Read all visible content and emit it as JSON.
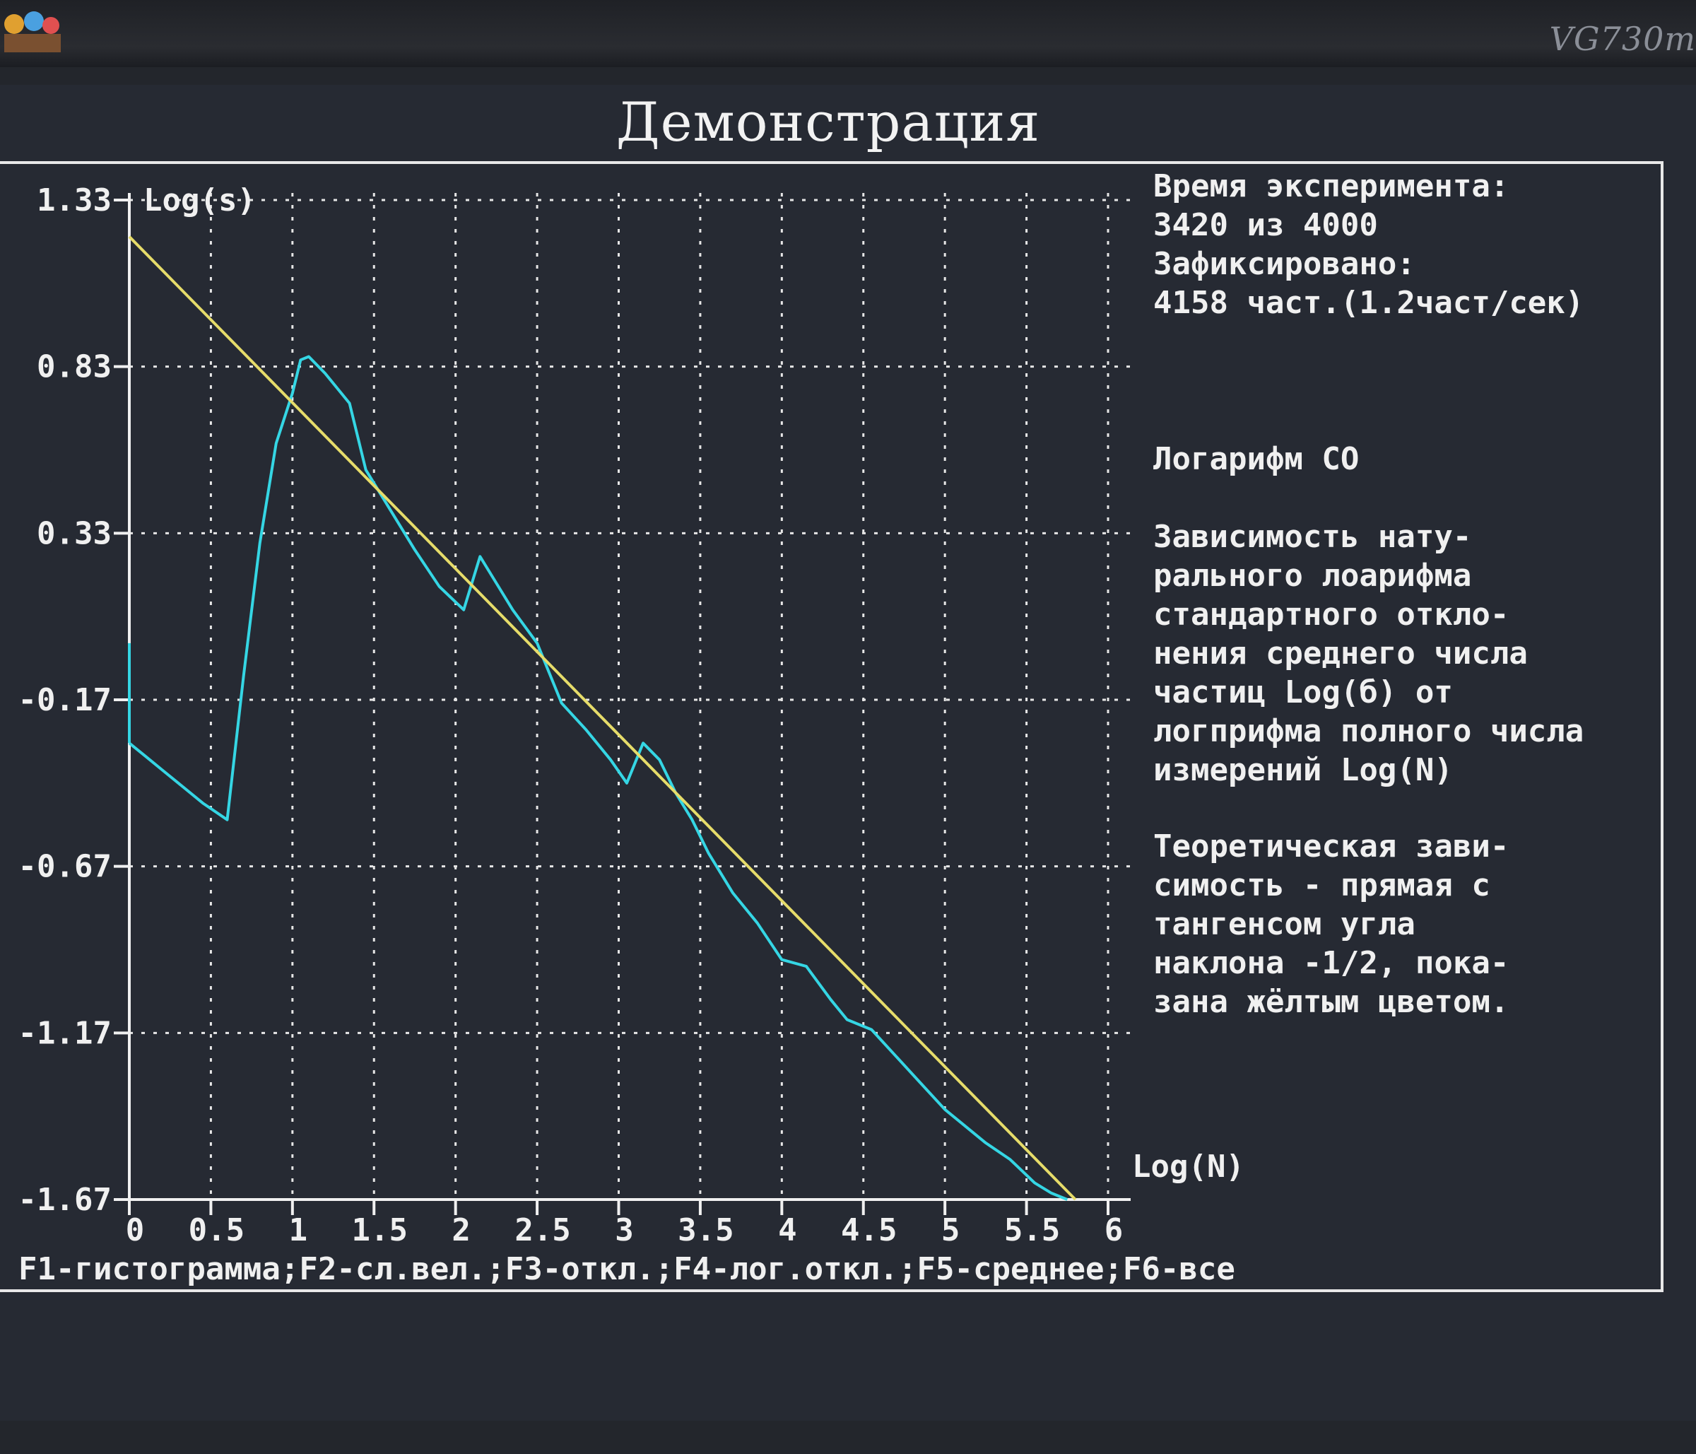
{
  "monitor": {
    "brand": "VG730m"
  },
  "window": {
    "title": "Демонстрация"
  },
  "info": {
    "time_label": "Время эксперимента:",
    "time_value": "3420 из 4000",
    "fixed_label": "Зафиксировано:",
    "fixed_value": "4158 част.(1.2част/сек)",
    "mode": "Логарифм СО",
    "description": "Зависимость нату-\nрального лоарифма\nстандартного откло-\nнения среднего числа\nчастиц Log(б) от\nлогприфма полного числа\nизмерений Log(N)",
    "theory": "Теоретическая зави-\nсимость - прямая с\nтангенсом угла\nнаклона -1/2, пока-\nзана жёлтым цветом."
  },
  "footer": {
    "fkeys": "F1-гистограмма;F2-сл.вел.;F3-откл.;F4-лог.откл.;F5-среднее;F6-все"
  },
  "colors": {
    "measured": "#35d6e4",
    "theory": "#e6dc6a",
    "grid": "#e6e6e6",
    "axis": "#f0f0f0"
  },
  "chart_data": {
    "type": "line",
    "ylabel": "Log(s)",
    "xlabel": "Log(N)",
    "xlim": [
      0,
      6
    ],
    "ylim": [
      -1.67,
      1.33
    ],
    "x_ticks": [
      "0",
      "0.5",
      "1",
      "1.5",
      "2",
      "2.5",
      "3",
      "3.5",
      "4",
      "4.5",
      "5",
      "5.5",
      "6"
    ],
    "y_ticks": [
      "1.33",
      "0.83",
      "0.33",
      "-0.17",
      "-0.67",
      "-1.17",
      "-1.67"
    ],
    "grid": true,
    "series": [
      {
        "x": [
          0,
          0.1,
          0.2,
          0.3,
          0.45,
          0.6,
          0.7,
          0.8,
          0.9,
          1.0,
          1.05,
          1.1,
          1.2,
          1.35,
          1.45,
          1.6,
          1.75,
          1.9,
          2.05,
          2.15,
          2.25,
          2.35,
          2.5,
          2.65,
          2.8,
          2.95,
          3.05,
          3.15,
          3.25,
          3.35,
          3.45,
          3.55,
          3.7,
          3.85,
          4.0,
          4.15,
          4.3,
          4.4,
          4.55,
          4.7,
          4.85,
          5.0,
          5.1,
          5.25,
          5.4,
          5.55,
          5.65,
          5.75
        ],
        "y": [
          -0.3,
          -0.34,
          -0.38,
          -0.42,
          -0.48,
          -0.53,
          -0.1,
          0.3,
          0.6,
          0.75,
          0.85,
          0.86,
          0.81,
          0.72,
          0.52,
          0.4,
          0.28,
          0.17,
          0.1,
          0.26,
          0.18,
          0.1,
          0.0,
          -0.18,
          -0.26,
          -0.35,
          -0.42,
          -0.3,
          -0.35,
          -0.45,
          -0.53,
          -0.63,
          -0.75,
          -0.84,
          -0.95,
          -0.97,
          -1.07,
          -1.13,
          -1.16,
          -1.24,
          -1.32,
          -1.4,
          -1.44,
          -1.5,
          -1.55,
          -1.62,
          -1.65,
          -1.67
        ]
      },
      {
        "x": [
          0,
          5.8
        ],
        "y": [
          1.22,
          -1.67
        ]
      }
    ]
  }
}
